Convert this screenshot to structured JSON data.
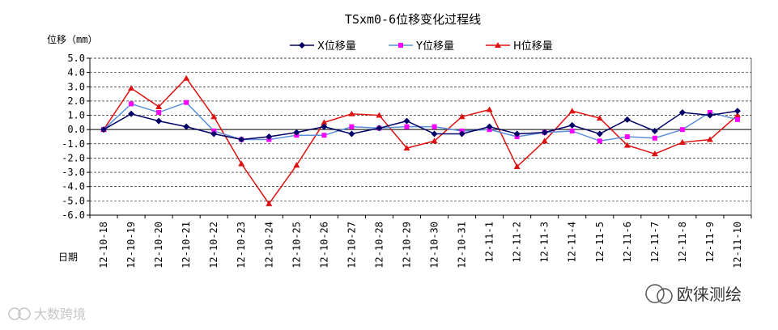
{
  "chart_data": {
    "type": "line",
    "title": "TSxm0-6位移变化过程线",
    "ylabel": "位移（mm）",
    "xlabel": "日期",
    "ylim": [
      -6.0,
      5.0
    ],
    "yticks": [
      "5.0",
      "4.0",
      "3.0",
      "2.0",
      "1.0",
      "0.0",
      "-1.0",
      "-2.0",
      "-3.0",
      "-4.0",
      "-5.0",
      "-6.0"
    ],
    "grid": true,
    "legend_position": "top",
    "categories": [
      "12-10-18",
      "12-10-19",
      "12-10-20",
      "12-10-21",
      "12-10-22",
      "12-10-23",
      "12-10-24",
      "12-10-25",
      "12-10-26",
      "12-10-27",
      "12-10-28",
      "12-10-29",
      "12-10-30",
      "12-10-31",
      "12-11-1",
      "12-11-2",
      "12-11-3",
      "12-11-4",
      "12-11-5",
      "12-11-6",
      "12-11-7",
      "12-11-8",
      "12-11-9",
      "12-11-10"
    ],
    "series": [
      {
        "name": "X位移量",
        "color": "#000066",
        "marker": "diamond",
        "values": [
          0.0,
          1.1,
          0.6,
          0.2,
          -0.3,
          -0.7,
          -0.5,
          -0.2,
          0.2,
          -0.3,
          0.1,
          0.6,
          -0.3,
          -0.3,
          0.2,
          -0.3,
          -0.2,
          0.3,
          -0.3,
          0.7,
          -0.1,
          1.2,
          1.0,
          1.3
        ]
      },
      {
        "name": "Y位移量",
        "color": "#5b8fd9",
        "marker": "square",
        "marker_color": "#ff00ff",
        "values": [
          0.0,
          1.8,
          1.2,
          1.9,
          -0.1,
          -0.7,
          -0.7,
          -0.4,
          -0.4,
          0.2,
          0.1,
          0.2,
          0.2,
          -0.1,
          0.0,
          -0.5,
          -0.2,
          -0.1,
          -0.8,
          -0.5,
          -0.6,
          0.0,
          1.2,
          0.7
        ]
      },
      {
        "name": "H位移量",
        "color": "#dd1111",
        "marker": "triangle",
        "values": [
          0.0,
          2.9,
          1.6,
          3.6,
          0.9,
          -2.4,
          -5.2,
          -2.5,
          0.5,
          1.1,
          1.0,
          -1.3,
          -0.8,
          0.9,
          1.4,
          -2.6,
          -0.8,
          1.3,
          0.8,
          -1.1,
          -1.7,
          -0.9,
          -0.7,
          1.0
        ]
      }
    ]
  },
  "watermark_left": "大数跨境",
  "watermark_right": "欧徕测绘"
}
